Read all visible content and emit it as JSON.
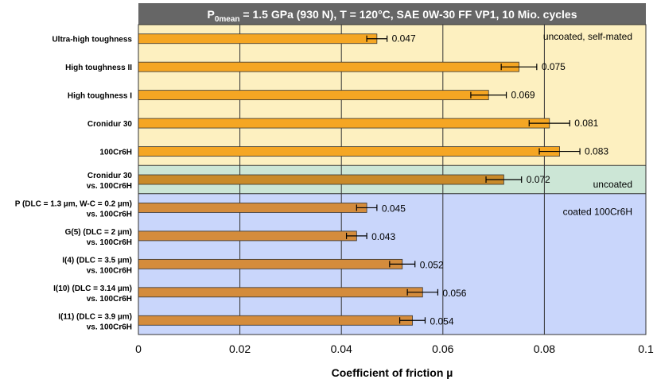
{
  "chart_data": {
    "type": "bar",
    "orientation": "horizontal",
    "title": {
      "main": "P",
      "subscript": "0mean",
      "rest": " = 1.5 GPa (930 N), T = 120°C, SAE 0W-30 FF VP1, 10 Mio. cycles"
    },
    "xlabel": "Coefficient of friction µ",
    "xlim": [
      0,
      0.1
    ],
    "x_ticks": [
      "0",
      "0.02",
      "0.04",
      "0.06",
      "0.08",
      "0.1"
    ],
    "grid": true,
    "categories": [
      [
        "Ultra-high toughness"
      ],
      [
        "High toughness II"
      ],
      [
        "High toughness I"
      ],
      [
        "Cronidur 30"
      ],
      [
        "100Cr6H"
      ],
      [
        "Cronidur 30",
        "vs. 100Cr6H"
      ],
      [
        "P (DLC = 1.3 µm, W-C = 0.2 µm)",
        "vs. 100Cr6H"
      ],
      [
        "G(5) (DLC = 2 µm)",
        "vs. 100Cr6H"
      ],
      [
        "I(4) (DLC = 3.5 µm)",
        "vs. 100Cr6H"
      ],
      [
        "I(10) (DLC = 3.14 µm)",
        "vs. 100Cr6H"
      ],
      [
        "I(11) (DLC = 3.9 µm)",
        "vs. 100Cr6H"
      ]
    ],
    "values": [
      0.047,
      0.075,
      0.069,
      0.081,
      0.083,
      0.072,
      0.045,
      0.043,
      0.052,
      0.056,
      0.054
    ],
    "value_labels": [
      "0.047",
      "0.075",
      "0.069",
      "0.081",
      "0.083",
      "0.072",
      "0.045",
      "0.043",
      "0.052",
      "0.056",
      "0.054"
    ],
    "errors": [
      0.002,
      0.0035,
      0.0035,
      0.004,
      0.004,
      0.0035,
      0.002,
      0.002,
      0.0025,
      0.003,
      0.0025
    ],
    "groups": [
      {
        "label": "uncoated, self-mated",
        "start": 0,
        "end": 4,
        "color": "#fdf0c0",
        "bar_color": "#f5a623"
      },
      {
        "label": "uncoated",
        "start": 5,
        "end": 5,
        "color": "#cce6d6",
        "bar_color": "#c98a2a"
      },
      {
        "label": "coated 100Cr6H",
        "start": 6,
        "end": 10,
        "color": "#c9d6fb",
        "bar_color": "#d48c3c"
      }
    ],
    "colors": {
      "title_bg": "#666666",
      "grid": "#333333",
      "bar_edge": "#333333",
      "error": "#000000"
    }
  }
}
